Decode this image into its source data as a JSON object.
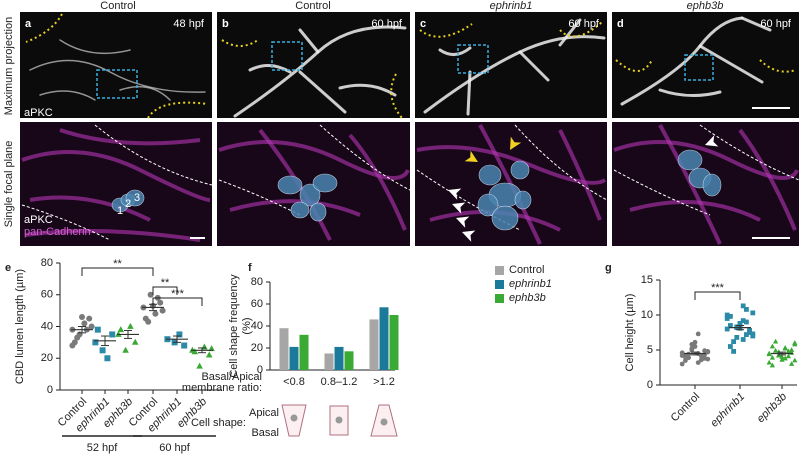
{
  "figure": {
    "column_headers": [
      "Control",
      "Control",
      "ephrinb1",
      "ephb3b"
    ],
    "row_labels": [
      "Maximum projection",
      "Single focal plane"
    ],
    "panels": [
      {
        "letter": "a",
        "time": "48 hpf"
      },
      {
        "letter": "b",
        "time": "60 hpf"
      },
      {
        "letter": "c",
        "time": "60 hpf"
      },
      {
        "letter": "d",
        "time": "60 hpf"
      }
    ],
    "stain_top": "aPKC",
    "stain_bottom": [
      "aPKC",
      "pan-Cadherin"
    ],
    "cell_numbers": [
      "1",
      "2",
      "3"
    ]
  },
  "chart_data": [
    {
      "type": "strip",
      "panel": "e",
      "ylabel": "CBD lumen length (µm)",
      "categories": [
        "Control",
        "ephrinb1",
        "ephb3b",
        "Control",
        "ephrinb1",
        "ephb3b"
      ],
      "groups": [
        "52 hpf",
        "60 hpf"
      ],
      "colors": [
        "#7a7a7a",
        "#2a8aa8",
        "#3aaa35",
        "#7a7a7a",
        "#2a8aa8",
        "#3aaa35"
      ],
      "markers": [
        "circle",
        "square",
        "triangle",
        "circle",
        "square",
        "triangle"
      ],
      "values": [
        [
          38,
          45,
          42,
          35,
          30,
          40,
          38,
          46,
          33,
          28
        ],
        [
          30,
          35,
          20,
          25,
          38
        ],
        [
          35,
          30,
          40,
          25,
          38
        ],
        [
          52,
          55,
          48,
          60,
          45,
          50,
          58,
          53,
          43
        ],
        [
          32,
          28,
          35,
          30
        ],
        [
          25,
          22,
          27,
          15,
          24,
          26
        ]
      ],
      "means": [
        38,
        31,
        35,
        52,
        32,
        25
      ],
      "sems": [
        2,
        3,
        2.5,
        2,
        2,
        1.5
      ],
      "annotations": [
        "**",
        "**",
        "***"
      ],
      "ylim": [
        0,
        80
      ],
      "yticks": [
        0,
        20,
        40,
        60,
        80
      ]
    },
    {
      "type": "bar",
      "panel": "f",
      "ylabel": [
        "Cell shape frequency",
        "(%)"
      ],
      "categories": [
        "<0.8",
        "0.8–1.2",
        ">1.2"
      ],
      "series": [
        {
          "name": "Control",
          "color": "#a6a6a6",
          "values": [
            38,
            15,
            46
          ]
        },
        {
          "name": "ephrinb1",
          "color": "#1b7a99",
          "values": [
            21,
            21,
            57
          ]
        },
        {
          "name": "ephb3b",
          "color": "#3aaa35",
          "values": [
            32,
            17,
            50
          ]
        }
      ],
      "xlabel": [
        "Basal/Apical",
        "membrane ratio:"
      ],
      "shape_label": "Cell shape:",
      "shape_parts": [
        "Apical",
        "Basal"
      ],
      "legend": "top-right",
      "ylim": [
        0,
        80
      ],
      "yticks": [
        0,
        20,
        40,
        60,
        80
      ]
    },
    {
      "type": "strip",
      "panel": "g",
      "ylabel": "Cell height (µm)",
      "categories": [
        "Control",
        "ephrinb1",
        "ephb3b"
      ],
      "colors": [
        "#7a7a7a",
        "#2a8aa8",
        "#3aaa35"
      ],
      "markers": [
        "circle",
        "square",
        "triangle"
      ],
      "values": [
        [
          4.2,
          3.8,
          4.5,
          5.0,
          3.5,
          4.8,
          4.1,
          5.5,
          3.9,
          4.6,
          4.3,
          3.2,
          5.2,
          4.0,
          4.7,
          3.6,
          6.1,
          4.4,
          3.0,
          4.9,
          7.3,
          5.8,
          4.2,
          3.7
        ],
        [
          8.0,
          7.5,
          9.2,
          6.8,
          8.5,
          10.3,
          7.2,
          8.8,
          6.2,
          9.5,
          7.8,
          11.3,
          8.2,
          5.5,
          7.0,
          9.0,
          8.6,
          4.8,
          10.0,
          7.6,
          6.5,
          8.3,
          9.8,
          7.3,
          10.8,
          8.1
        ],
        [
          4.5,
          5.0,
          3.8,
          4.2,
          5.5,
          3.5,
          4.8,
          4.0,
          6.2,
          3.2,
          4.6,
          5.2,
          4.3,
          2.8,
          5.8,
          4.1,
          3.6,
          4.9,
          4.4,
          3.0,
          5.3,
          4.7,
          3.9,
          6.0
        ]
      ],
      "means": [
        4.5,
        8.2,
        4.5
      ],
      "sems": [
        0.2,
        0.3,
        0.2
      ],
      "annotations": [
        "***"
      ],
      "ylim": [
        0,
        15
      ],
      "yticks": [
        0,
        5,
        10,
        15
      ]
    }
  ]
}
